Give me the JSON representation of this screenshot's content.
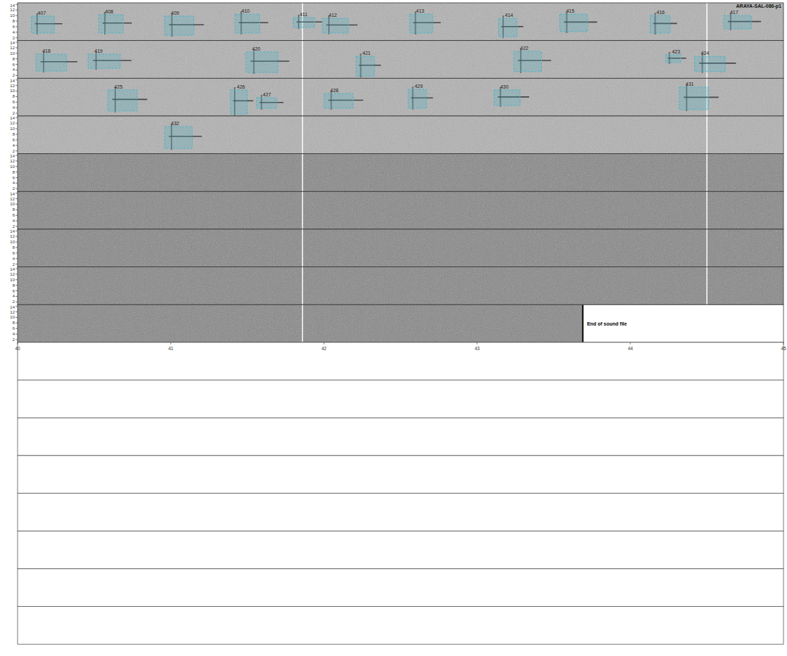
{
  "chart_data": {
    "type": "spectrogram",
    "title": "ARAYA-SAL-086-p1",
    "xlim": [
      40,
      45
    ],
    "xticks": [
      40,
      41,
      42,
      43,
      44,
      45
    ],
    "ylim": [
      1,
      14.6
    ],
    "yticks": [
      2,
      4,
      6,
      8,
      10,
      12,
      14
    ],
    "rows": 9,
    "blank_rows": 8,
    "page_marks": [
      41.86,
      44.5
    ],
    "end_of_file": {
      "row": 9,
      "x": 43.69,
      "label": "End of sound file"
    },
    "color": "#4fb3c4",
    "annotations": [
      {
        "id": 407,
        "row": 1,
        "x": [
          40.09,
          40.24
        ],
        "y": [
          3.7,
          9.8
        ]
      },
      {
        "id": 408,
        "row": 1,
        "x": [
          40.53,
          40.69
        ],
        "y": [
          3.7,
          10.3
        ]
      },
      {
        "id": 409,
        "row": 1,
        "x": [
          40.96,
          41.15
        ],
        "y": [
          2.9,
          9.8
        ]
      },
      {
        "id": 410,
        "row": 1,
        "x": [
          41.42,
          41.58
        ],
        "y": [
          3.7,
          10.5
        ]
      },
      {
        "id": 411,
        "row": 1,
        "x": [
          41.8,
          41.94
        ],
        "y": [
          5.7,
          9.3
        ]
      },
      {
        "id": 412,
        "row": 1,
        "x": [
          41.99,
          42.16
        ],
        "y": [
          3.7,
          9.0
        ]
      },
      {
        "id": 413,
        "row": 1,
        "x": [
          42.56,
          42.71
        ],
        "y": [
          3.7,
          10.5
        ]
      },
      {
        "id": 414,
        "row": 1,
        "x": [
          43.14,
          43.26
        ],
        "y": [
          2.4,
          9.0
        ]
      },
      {
        "id": 415,
        "row": 1,
        "x": [
          43.54,
          43.72
        ],
        "y": [
          4.2,
          10.5
        ]
      },
      {
        "id": 416,
        "row": 1,
        "x": [
          44.13,
          44.26
        ],
        "y": [
          3.7,
          10.0
        ]
      },
      {
        "id": 417,
        "row": 1,
        "x": [
          44.61,
          44.79
        ],
        "y": [
          5.2,
          10.0
        ]
      },
      {
        "id": 418,
        "row": 2,
        "x": [
          40.12,
          40.32
        ],
        "y": [
          3.6,
          9.7
        ]
      },
      {
        "id": 419,
        "row": 2,
        "x": [
          40.46,
          40.67
        ],
        "y": [
          4.6,
          9.7
        ]
      },
      {
        "id": 420,
        "row": 2,
        "x": [
          41.49,
          41.7
        ],
        "y": [
          3.1,
          10.5
        ]
      },
      {
        "id": 421,
        "row": 2,
        "x": [
          42.21,
          42.33
        ],
        "y": [
          1.8,
          8.9
        ]
      },
      {
        "id": 422,
        "row": 2,
        "x": [
          43.24,
          43.42
        ],
        "y": [
          3.4,
          10.7
        ]
      },
      {
        "id": 423,
        "row": 2,
        "x": [
          44.23,
          44.33
        ],
        "y": [
          6.7,
          9.5
        ]
      },
      {
        "id": 424,
        "row": 2,
        "x": [
          44.42,
          44.62
        ],
        "y": [
          3.4,
          8.9
        ]
      },
      {
        "id": 425,
        "row": 3,
        "x": [
          40.59,
          40.78
        ],
        "y": [
          2.8,
          10.4
        ]
      },
      {
        "id": 426,
        "row": 3,
        "x": [
          41.39,
          41.5
        ],
        "y": [
          1.7,
          10.4
        ]
      },
      {
        "id": 427,
        "row": 3,
        "x": [
          41.56,
          41.69
        ],
        "y": [
          3.8,
          7.6
        ]
      },
      {
        "id": 428,
        "row": 3,
        "x": [
          42.0,
          42.19
        ],
        "y": [
          3.8,
          9.1
        ]
      },
      {
        "id": 429,
        "row": 3,
        "x": [
          42.55,
          42.67
        ],
        "y": [
          3.8,
          10.6
        ]
      },
      {
        "id": 430,
        "row": 3,
        "x": [
          43.11,
          43.28
        ],
        "y": [
          4.8,
          10.4
        ]
      },
      {
        "id": 431,
        "row": 3,
        "x": [
          44.32,
          44.51
        ],
        "y": [
          3.3,
          11.4
        ]
      },
      {
        "id": 432,
        "row": 4,
        "x": [
          40.96,
          41.14
        ],
        "y": [
          2.9,
          10.8
        ]
      }
    ]
  }
}
